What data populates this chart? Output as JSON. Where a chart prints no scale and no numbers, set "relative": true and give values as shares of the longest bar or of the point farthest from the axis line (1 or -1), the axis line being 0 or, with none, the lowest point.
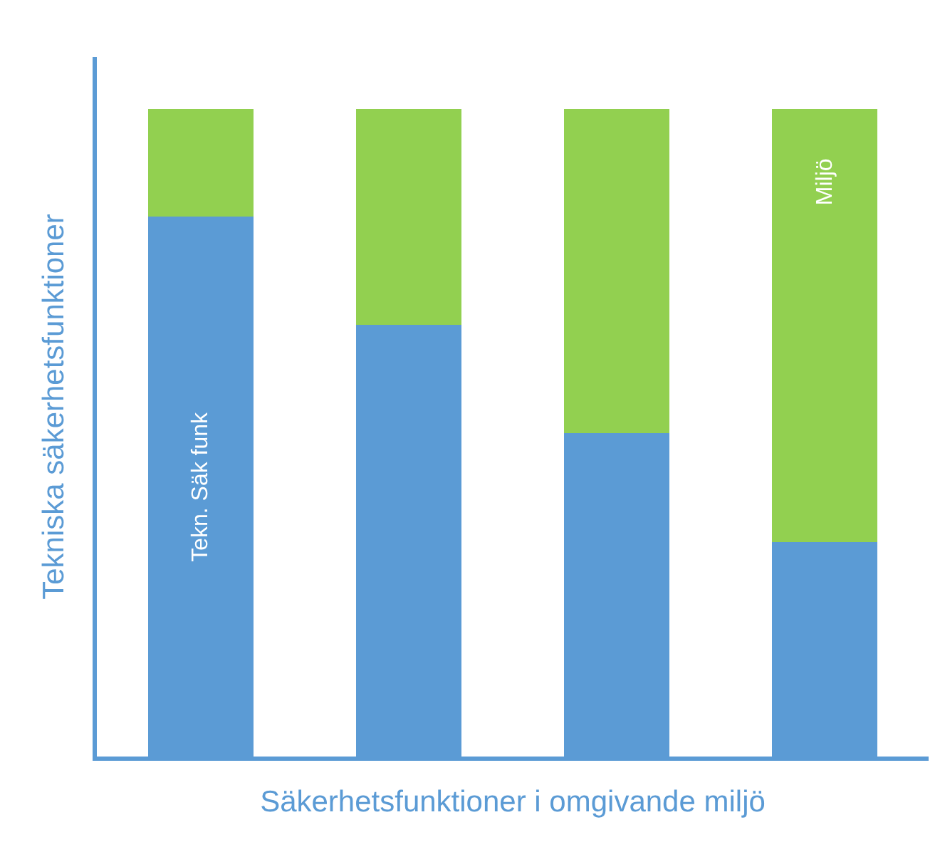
{
  "chart_data": {
    "type": "bar",
    "stacked": true,
    "relative": true,
    "xlabel": "Säkerhetsfunktioner i omgivande miljö",
    "ylabel": "Tekniska säkerhetsfunktioner",
    "categories": [
      null,
      null,
      null,
      null
    ],
    "series": [
      {
        "name": "Tekn. Säk funk",
        "color": "#5b9bd5",
        "values": [
          0.834,
          0.667,
          0.499,
          0.331
        ]
      },
      {
        "name": "Miljö",
        "color": "#92d050",
        "values": [
          0.166,
          0.333,
          0.501,
          0.669
        ]
      }
    ]
  }
}
